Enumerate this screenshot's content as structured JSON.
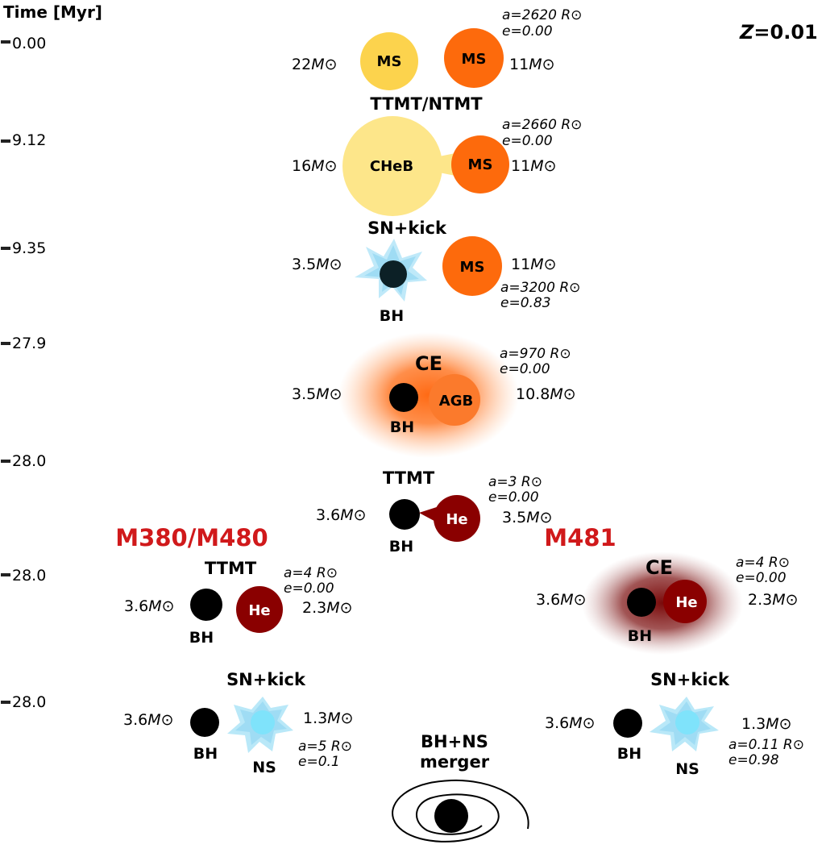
{
  "axis": {
    "title": "Time [Myr]",
    "ticks": [
      "0.00",
      "9.12",
      "9.35",
      "27.9",
      "28.0",
      "28.0",
      "28.0"
    ]
  },
  "metallicity": {
    "prefix": "Z",
    "value": "=0.01"
  },
  "sun": "⊙",
  "colors": {
    "ms_yellow": "#fcd34d",
    "cheb_yellow": "#fde68a",
    "ms_orange": "#fd6a0c",
    "agb_orange": "#fb7a2c",
    "he_red": "#8a0000",
    "ns_cyan": "#7fe3fb",
    "kick_blue": "#b9e8f8",
    "bh_black": "#000000",
    "model_red": "#d0191b"
  },
  "stages": {
    "s1": {
      "m1": "22",
      "m2": "11",
      "star1": "MS",
      "star2": "MS",
      "a": "a=2620 R",
      "e": "e=0.00",
      "phase": "TTMT/NTMT"
    },
    "s2": {
      "m1": "16",
      "m2": "11",
      "star1": "CHeB",
      "star2": "MS",
      "a": "a=2660 R",
      "e": "e=0.00"
    },
    "s3": {
      "phase": "SN+kick",
      "m1": "3.5",
      "m2": "11",
      "star2": "MS",
      "label1": "BH",
      "a": "a=3200 R",
      "e": "e=0.83"
    },
    "s4": {
      "phase": "CE",
      "m1": "3.5",
      "m2": "10.8",
      "star2": "AGB",
      "label1": "BH",
      "a": "a=970 R",
      "e": "e=0.00"
    },
    "s5": {
      "phase": "TTMT",
      "m1": "3.6",
      "m2": "3.5",
      "star2": "He",
      "label1": "BH",
      "a": "a=3 R",
      "e": "e=0.00"
    },
    "left6": {
      "model": "M380/M480",
      "phase": "TTMT",
      "m1": "3.6",
      "m2": "2.3",
      "star2": "He",
      "label1": "BH",
      "a": "a=4 R",
      "e": "e=0.00"
    },
    "right6": {
      "model": "M481",
      "phase": "CE",
      "m1": "3.6",
      "m2": "2.3",
      "star2": "He",
      "label1": "BH",
      "a": "a=4 R",
      "e": "e=0.00"
    },
    "left7": {
      "phase": "SN+kick",
      "m1": "3.6",
      "m2": "1.3",
      "label1": "BH",
      "label2": "NS",
      "a": "a=5 R",
      "e": "e=0.1"
    },
    "right7": {
      "phase": "SN+kick",
      "m1": "3.6",
      "m2": "1.3",
      "label1": "BH",
      "label2": "NS",
      "a": "a=0.11 R",
      "e": "e=0.98"
    },
    "merger": {
      "line1": "BH+NS",
      "line2": "merger"
    }
  }
}
